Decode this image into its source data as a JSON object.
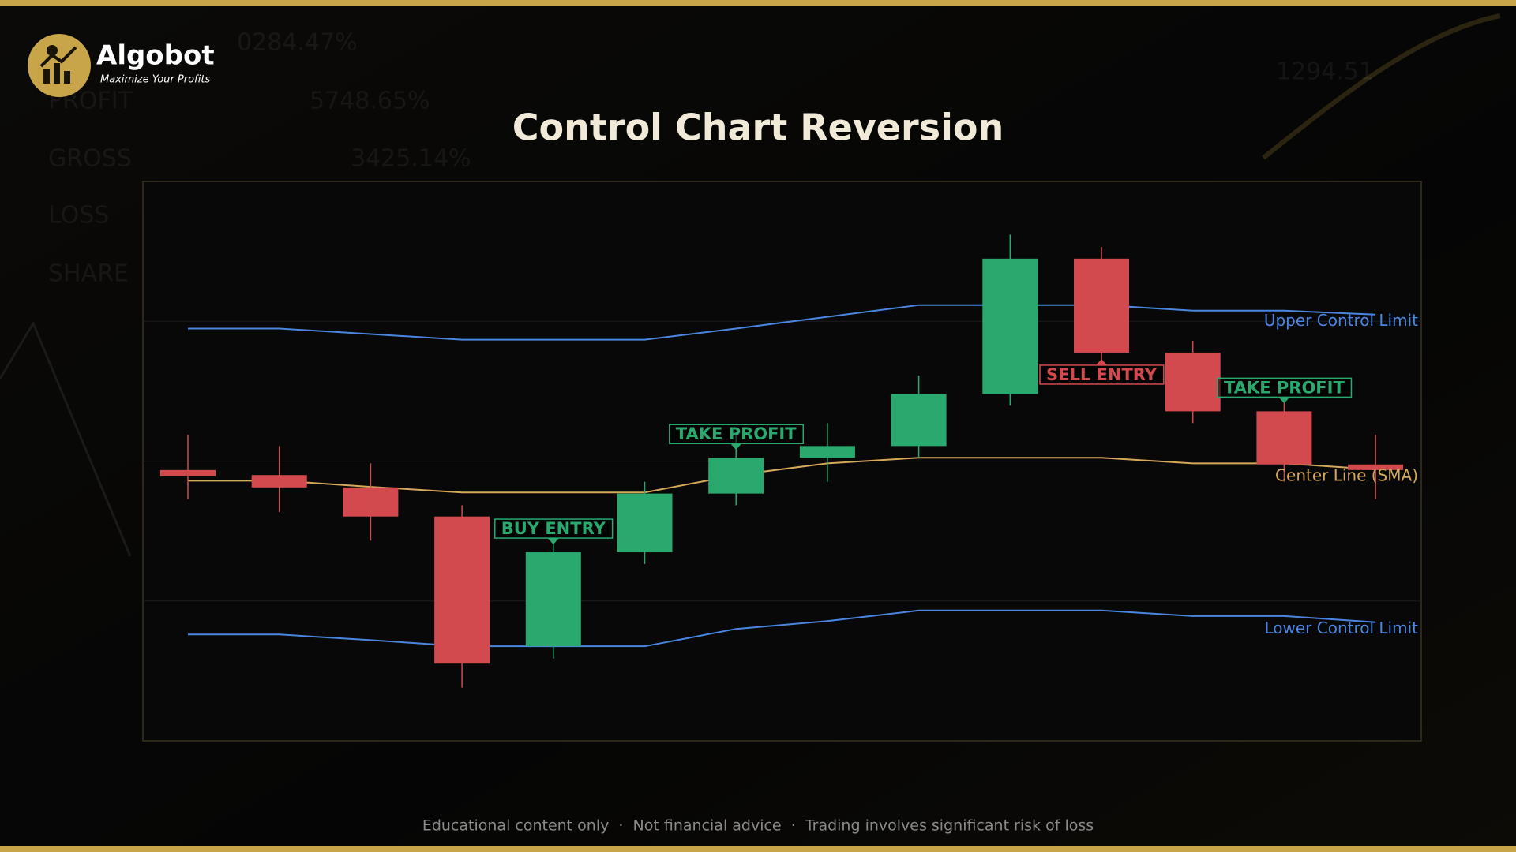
{
  "brand": {
    "name": "Algobot",
    "tagline": "Maximize Your Profits"
  },
  "background_texts": [
    "0284.47%",
    "PROFIT",
    "5748.65%",
    "GROSS",
    "3425.14%",
    "LOSS",
    "SHARE",
    "1294.51"
  ],
  "chart_data": {
    "type": "candlestick",
    "title": "Control Chart Reversion",
    "categories": [
      null,
      null,
      null,
      null,
      null,
      null,
      null,
      null,
      null,
      null,
      null,
      null,
      null,
      null
    ],
    "open": [
      48.4,
      47.5,
      45.3,
      40.1,
      16.9,
      33.7,
      44.2,
      50.6,
      52.7,
      62.0,
      86.2,
      69.4,
      58.9,
      49.4
    ],
    "high": [
      54.7,
      52.7,
      49.6,
      42.1,
      35.4,
      46.3,
      54.7,
      56.8,
      65.3,
      90.5,
      88.3,
      71.5,
      61.1,
      54.7
    ],
    "low": [
      43.2,
      40.9,
      35.8,
      9.5,
      14.7,
      31.6,
      42.1,
      46.3,
      50.6,
      59.9,
      67.4,
      56.8,
      46.3,
      43.2
    ],
    "close": [
      47.3,
      45.3,
      40.1,
      13.8,
      33.7,
      44.2,
      50.6,
      52.7,
      62.0,
      86.2,
      69.4,
      58.9,
      49.4,
      48.4
    ],
    "up_color": "#2aa96f",
    "down_color": "#d24a4d",
    "series": [
      {
        "name": "Upper Control Limit",
        "color": "#4a86e0",
        "values": [
          73.7,
          73.7,
          72.7,
          71.7,
          71.7,
          71.7,
          73.7,
          75.8,
          77.9,
          77.9,
          77.9,
          76.9,
          76.9,
          76.2
        ]
      },
      {
        "name": "Center Line (SMA)",
        "color": "#d6a85a",
        "values": [
          46.5,
          46.5,
          45.4,
          44.4,
          44.4,
          44.4,
          47.5,
          49.6,
          50.6,
          50.6,
          50.6,
          49.6,
          49.6,
          48.5
        ]
      },
      {
        "name": "Lower Control Limit",
        "color": "#4a86e0",
        "values": [
          19.0,
          19.0,
          18.0,
          16.9,
          16.9,
          16.9,
          20.0,
          21.4,
          23.3,
          23.3,
          23.3,
          22.3,
          22.3,
          21.2
        ]
      }
    ],
    "annotations": [
      {
        "text": "BUY ENTRY",
        "index": 4,
        "color": "#2aa96f"
      },
      {
        "text": "TAKE PROFIT",
        "index": 6,
        "color": "#2aa96f"
      },
      {
        "text": "SELL ENTRY",
        "index": 10,
        "color": "#d24a4d"
      },
      {
        "text": "TAKE PROFIT",
        "index": 12,
        "color": "#2aa96f"
      }
    ],
    "ylim": [
      0,
      100
    ],
    "yticks": [
      25,
      50,
      75
    ],
    "grid": true
  },
  "footer": "Educational content only  ·  Not financial advice  ·  Trading involves significant risk of loss"
}
